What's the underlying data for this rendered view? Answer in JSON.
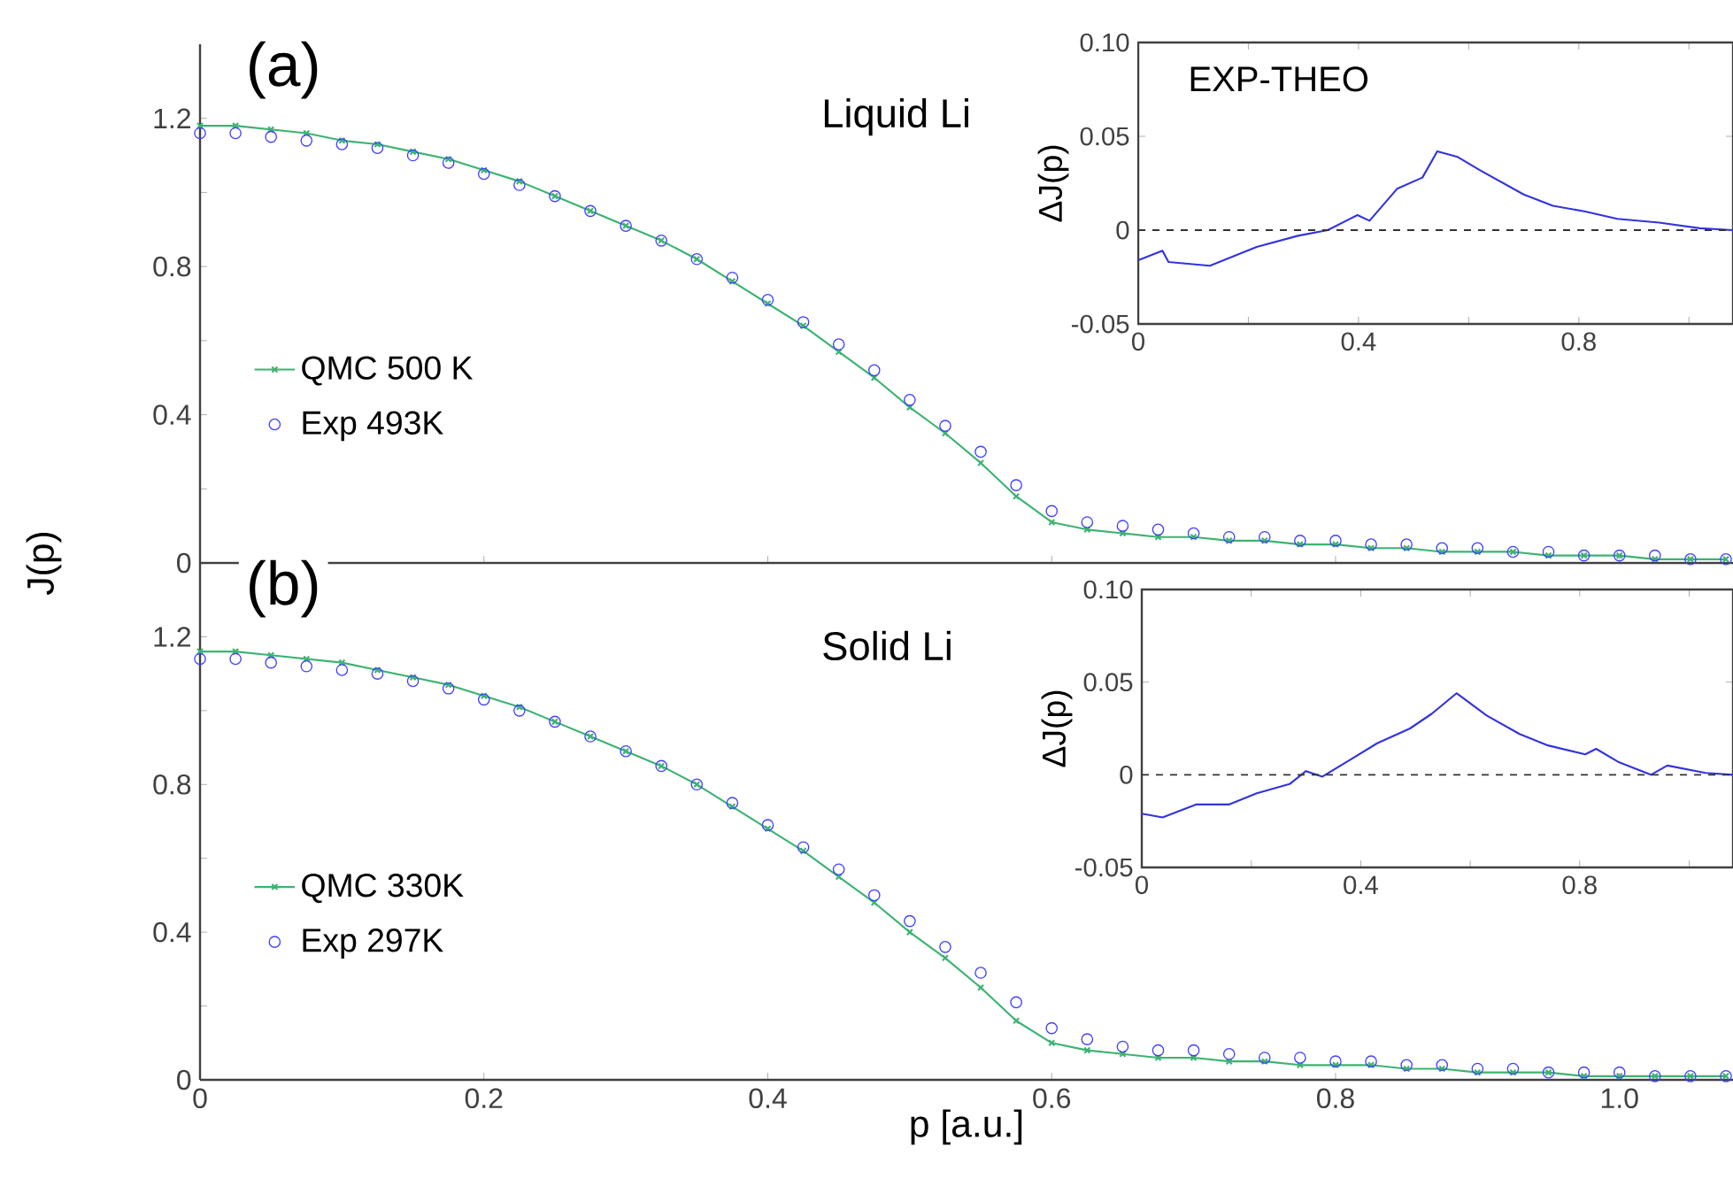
{
  "chart_data": [
    {
      "type": "line",
      "title": "(a)",
      "ylabel": "J(p)",
      "annotations": [
        "Liquid Li"
      ],
      "legend": "left",
      "tick_labels": "y",
      "xlim": [
        0,
        1.08
      ],
      "ylim": [
        0,
        1.4
      ],
      "xticks": [
        0,
        0.2,
        0.4,
        0.6,
        0.8,
        1
      ],
      "yticks": [
        0,
        {
          "value": 0.2,
          "label": null
        },
        0.4,
        {
          "value": 0.6,
          "label": null
        },
        0.8,
        {
          "value": 1.0,
          "label": null
        },
        1.2
      ],
      "x": [
        0,
        0.025,
        0.05,
        0.075,
        0.1,
        0.125,
        0.15,
        0.175,
        0.2,
        0.225,
        0.25,
        0.275,
        0.3,
        0.325,
        0.35,
        0.375,
        0.4,
        0.425,
        0.45,
        0.475,
        0.5,
        0.525,
        0.55,
        0.575,
        0.6,
        0.625,
        0.65,
        0.675,
        0.7,
        0.725,
        0.75,
        0.775,
        0.8,
        0.825,
        0.85,
        0.875,
        0.9,
        0.925,
        0.95,
        0.975,
        1.0,
        1.025,
        1.05,
        1.075
      ],
      "series": [
        {
          "name": "QMC 500 K",
          "type": "line",
          "marker": "cross",
          "color": "#3cb371",
          "values": [
            1.18,
            1.18,
            1.17,
            1.16,
            1.14,
            1.13,
            1.11,
            1.09,
            1.06,
            1.03,
            0.99,
            0.95,
            0.91,
            0.87,
            0.82,
            0.76,
            0.7,
            0.64,
            0.57,
            0.5,
            0.42,
            0.35,
            0.27,
            0.18,
            0.11,
            0.09,
            0.08,
            0.07,
            0.07,
            0.06,
            0.06,
            0.05,
            0.05,
            0.04,
            0.04,
            0.03,
            0.03,
            0.03,
            0.02,
            0.02,
            0.02,
            0.01,
            0.01,
            0.01
          ]
        },
        {
          "name": "Exp  493K",
          "type": "scatter",
          "marker": "circle",
          "color": "#4040ff",
          "values": [
            1.16,
            1.16,
            1.15,
            1.14,
            1.13,
            1.12,
            1.1,
            1.08,
            1.05,
            1.02,
            0.99,
            0.95,
            0.91,
            0.87,
            0.82,
            0.77,
            0.71,
            0.65,
            0.59,
            0.52,
            0.44,
            0.37,
            0.3,
            0.21,
            0.14,
            0.11,
            0.1,
            0.09,
            0.08,
            0.07,
            0.07,
            0.06,
            0.06,
            0.05,
            0.05,
            0.04,
            0.04,
            0.03,
            0.03,
            0.02,
            0.02,
            0.02,
            0.01,
            0.01
          ]
        }
      ]
    },
    {
      "type": "line",
      "title": "(b)",
      "xlabel": "p [a.u.]",
      "annotations": [
        "Solid Li"
      ],
      "legend": "left",
      "xlim": [
        0,
        1.08
      ],
      "ylim": [
        0,
        1.4
      ],
      "xticks": [
        0,
        0.2,
        0.4,
        0.6,
        0.8,
        {
          "value": 1.0,
          "label": "1.0"
        }
      ],
      "yticks": [
        0,
        {
          "value": 0.2,
          "label": null
        },
        0.4,
        {
          "value": 0.6,
          "label": null
        },
        0.8,
        {
          "value": 1.0,
          "label": null
        },
        1.2
      ],
      "x": [
        0,
        0.025,
        0.05,
        0.075,
        0.1,
        0.125,
        0.15,
        0.175,
        0.2,
        0.225,
        0.25,
        0.275,
        0.3,
        0.325,
        0.35,
        0.375,
        0.4,
        0.425,
        0.45,
        0.475,
        0.5,
        0.525,
        0.55,
        0.575,
        0.6,
        0.625,
        0.65,
        0.675,
        0.7,
        0.725,
        0.75,
        0.775,
        0.8,
        0.825,
        0.85,
        0.875,
        0.9,
        0.925,
        0.95,
        0.975,
        1.0,
        1.025,
        1.05,
        1.075
      ],
      "series": [
        {
          "name": "QMC 330K",
          "type": "line",
          "marker": "cross",
          "color": "#3cb371",
          "values": [
            1.16,
            1.16,
            1.15,
            1.14,
            1.13,
            1.11,
            1.09,
            1.07,
            1.04,
            1.01,
            0.97,
            0.93,
            0.89,
            0.85,
            0.8,
            0.74,
            0.68,
            0.62,
            0.55,
            0.48,
            0.4,
            0.33,
            0.25,
            0.16,
            0.1,
            0.08,
            0.07,
            0.06,
            0.06,
            0.05,
            0.05,
            0.04,
            0.04,
            0.04,
            0.03,
            0.03,
            0.02,
            0.02,
            0.02,
            0.01,
            0.01,
            0.01,
            0.01,
            0.01
          ]
        },
        {
          "name": "Exp  297K",
          "type": "scatter",
          "marker": "circle",
          "color": "#4040ff",
          "values": [
            1.14,
            1.14,
            1.13,
            1.12,
            1.11,
            1.1,
            1.08,
            1.06,
            1.03,
            1.0,
            0.97,
            0.93,
            0.89,
            0.85,
            0.8,
            0.75,
            0.69,
            0.63,
            0.57,
            0.5,
            0.43,
            0.36,
            0.29,
            0.21,
            0.14,
            0.11,
            0.09,
            0.08,
            0.08,
            0.07,
            0.06,
            0.06,
            0.05,
            0.05,
            0.04,
            0.04,
            0.03,
            0.03,
            0.02,
            0.02,
            0.02,
            0.01,
            0.01,
            0.01
          ]
        }
      ]
    },
    {
      "type": "line",
      "ylabel": "ΔJ(p)",
      "annotations": [
        "EXP-THEO"
      ],
      "xlim": [
        0,
        1.08
      ],
      "ylim": [
        -0.05,
        0.1
      ],
      "xticks": [
        0,
        {
          "value": 0.2,
          "label": null
        },
        0.4,
        {
          "value": 0.6,
          "label": null
        },
        0.8,
        {
          "value": 1.0,
          "label": null
        }
      ],
      "yticks": [
        -0.05,
        0,
        0.05,
        {
          "value": 0.1,
          "label": "0.10"
        }
      ],
      "ref_lines": [
        {
          "axis": "y",
          "value": 0,
          "color": "#333333",
          "line_style": "dashed"
        }
      ],
      "x": [
        0,
        0.044,
        0.055,
        0.13,
        0.215,
        0.29,
        0.344,
        0.398,
        0.42,
        0.47,
        0.516,
        0.543,
        0.58,
        0.62,
        0.7,
        0.753,
        0.81,
        0.87,
        0.946,
        1.02,
        1.08
      ],
      "series": [
        {
          "color": "#3333dd",
          "values": [
            -0.016,
            -0.011,
            -0.017,
            -0.019,
            -0.009,
            -0.003,
            0.0,
            0.008,
            0.005,
            0.022,
            0.028,
            0.042,
            0.039,
            0.032,
            0.019,
            0.013,
            0.01,
            0.006,
            0.004,
            0.001,
            0.0
          ]
        }
      ]
    },
    {
      "type": "line",
      "ylabel": "ΔJ(p)",
      "xlim": [
        0,
        1.08
      ],
      "ylim": [
        -0.05,
        0.1
      ],
      "xticks": [
        0,
        {
          "value": 0.2,
          "label": null
        },
        0.4,
        {
          "value": 0.6,
          "label": null
        },
        0.8,
        {
          "value": 1.0,
          "label": null
        }
      ],
      "yticks": [
        -0.05,
        0,
        0.05,
        {
          "value": 0.1,
          "label": "0.10"
        }
      ],
      "ref_lines": [
        {
          "axis": "y",
          "value": 0,
          "color": "#333333",
          "line_style": "dashed"
        }
      ],
      "x": [
        0,
        0.038,
        0.1,
        0.16,
        0.21,
        0.27,
        0.3,
        0.33,
        0.38,
        0.43,
        0.49,
        0.53,
        0.575,
        0.63,
        0.69,
        0.74,
        0.81,
        0.83,
        0.87,
        0.93,
        0.96,
        1.03,
        1.08
      ],
      "series": [
        {
          "color": "#3333dd",
          "values": [
            -0.021,
            -0.023,
            -0.016,
            -0.016,
            -0.01,
            -0.005,
            0.002,
            -0.001,
            0.008,
            0.017,
            0.025,
            0.033,
            0.044,
            0.032,
            0.022,
            0.016,
            0.011,
            0.014,
            0.007,
            0.0,
            0.005,
            0.001,
            0.0
          ]
        }
      ]
    }
  ]
}
